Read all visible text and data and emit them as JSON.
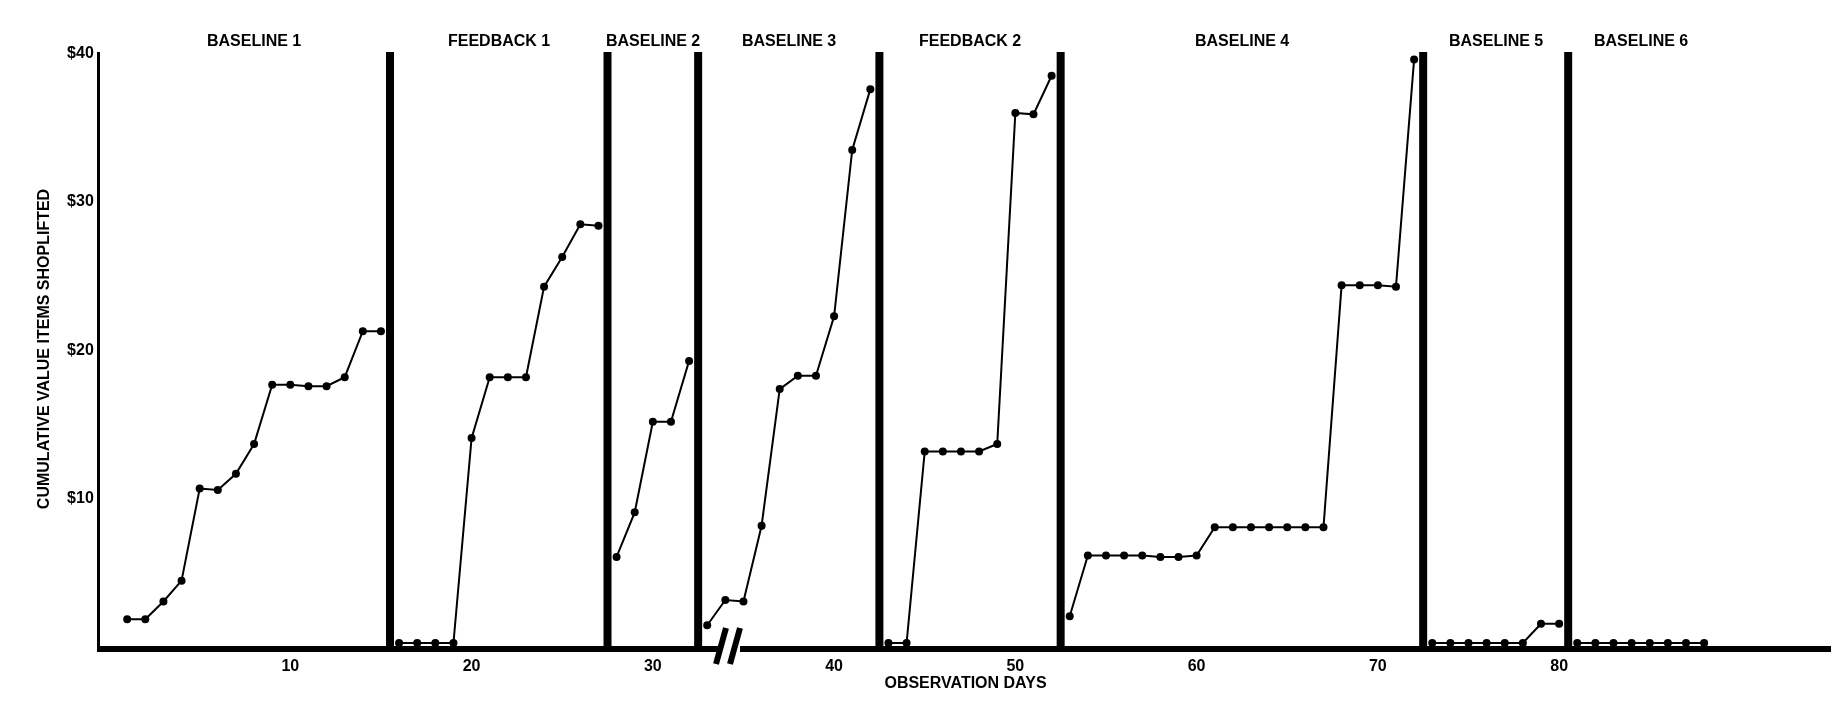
{
  "chart_data": {
    "type": "line",
    "xlabel": "OBSERVATION DAYS",
    "ylabel": "CUMULATIVE VALUE ITEMS SHOPLIFTED",
    "marker": "circle",
    "line_style": "solid",
    "xlim": [
      -0.5,
      95
    ],
    "xticks": [
      10,
      20,
      30,
      40,
      50,
      60,
      70,
      80
    ],
    "ylim": [
      0,
      40
    ],
    "yticks": [
      {
        "value": 10,
        "label": "$10"
      },
      {
        "value": 20,
        "label": "$20"
      },
      {
        "value": 30,
        "label": "$30"
      },
      {
        "value": 40,
        "label": "$40"
      }
    ],
    "series": [
      {
        "color": "#000000",
        "x": [
          1,
          2,
          3,
          4,
          5,
          6,
          7,
          8,
          9,
          10,
          11,
          12,
          13,
          14,
          15
        ],
        "values": [
          1.8,
          1.8,
          3.0,
          4.4,
          10.6,
          10.5,
          11.6,
          13.6,
          17.6,
          17.6,
          17.5,
          17.5,
          18.1,
          21.2,
          21.2
        ]
      },
      {
        "color": "#000000",
        "x": [
          16,
          17,
          18,
          19,
          20,
          21,
          22,
          23,
          24,
          25,
          26,
          27
        ],
        "values": [
          0.2,
          0.2,
          0.2,
          0.2,
          14.0,
          18.1,
          18.1,
          18.1,
          24.2,
          26.2,
          28.4,
          28.3
        ]
      },
      {
        "color": "#000000",
        "x": [
          28,
          29,
          30,
          31,
          32
        ],
        "values": [
          6.0,
          9.0,
          15.1,
          15.1,
          19.2
        ]
      },
      {
        "color": "#000000",
        "x": [
          33,
          34,
          35,
          36,
          37,
          38,
          39,
          40,
          41,
          42
        ],
        "values": [
          1.4,
          3.1,
          3.0,
          8.1,
          17.3,
          18.2,
          18.2,
          22.2,
          33.4,
          37.5
        ]
      },
      {
        "color": "#000000",
        "x": [
          43,
          44,
          45,
          46,
          47,
          48,
          49,
          50,
          51,
          52
        ],
        "values": [
          0.2,
          0.2,
          13.1,
          13.1,
          13.1,
          13.1,
          13.6,
          35.9,
          35.8,
          38.4
        ]
      },
      {
        "color": "#000000",
        "x": [
          53,
          54,
          55,
          56,
          57,
          58,
          59,
          60,
          61,
          62,
          63,
          64,
          65,
          66,
          67,
          68,
          69,
          70,
          71,
          72
        ],
        "values": [
          2.0,
          6.1,
          6.1,
          6.1,
          6.1,
          6.0,
          6.0,
          6.1,
          8.0,
          8.0,
          8.0,
          8.0,
          8.0,
          8.0,
          8.0,
          24.3,
          24.3,
          24.3,
          24.2,
          39.5
        ]
      },
      {
        "color": "#000000",
        "x": [
          73,
          74,
          75,
          76,
          77,
          78,
          79,
          80
        ],
        "values": [
          0.2,
          0.2,
          0.2,
          0.2,
          0.2,
          0.2,
          1.5,
          1.5
        ]
      },
      {
        "color": "#000000",
        "x": [
          81,
          82,
          83,
          84,
          85,
          86,
          87,
          88
        ],
        "values": [
          0.2,
          0.2,
          0.2,
          0.2,
          0.2,
          0.2,
          0.2,
          0.2
        ]
      }
    ],
    "ref_lines": [
      {
        "axis": "x",
        "value": 15.5,
        "color": "#000000"
      },
      {
        "axis": "x",
        "value": 27.5,
        "color": "#000000"
      },
      {
        "axis": "x",
        "value": 32.5,
        "color": "#000000"
      },
      {
        "axis": "x",
        "value": 42.5,
        "color": "#000000"
      },
      {
        "axis": "x",
        "value": 52.5,
        "color": "#000000"
      },
      {
        "axis": "x",
        "value": 72.5,
        "color": "#000000"
      },
      {
        "axis": "x",
        "value": 80.5,
        "color": "#000000"
      }
    ],
    "annotations": [
      "BASELINE 1",
      "FEEDBACK 1",
      "BASELINE 2",
      "BASELINE 3",
      "FEEDBACK 2",
      "BASELINE 4",
      "BASELINE 5",
      "BASELINE 6"
    ]
  }
}
